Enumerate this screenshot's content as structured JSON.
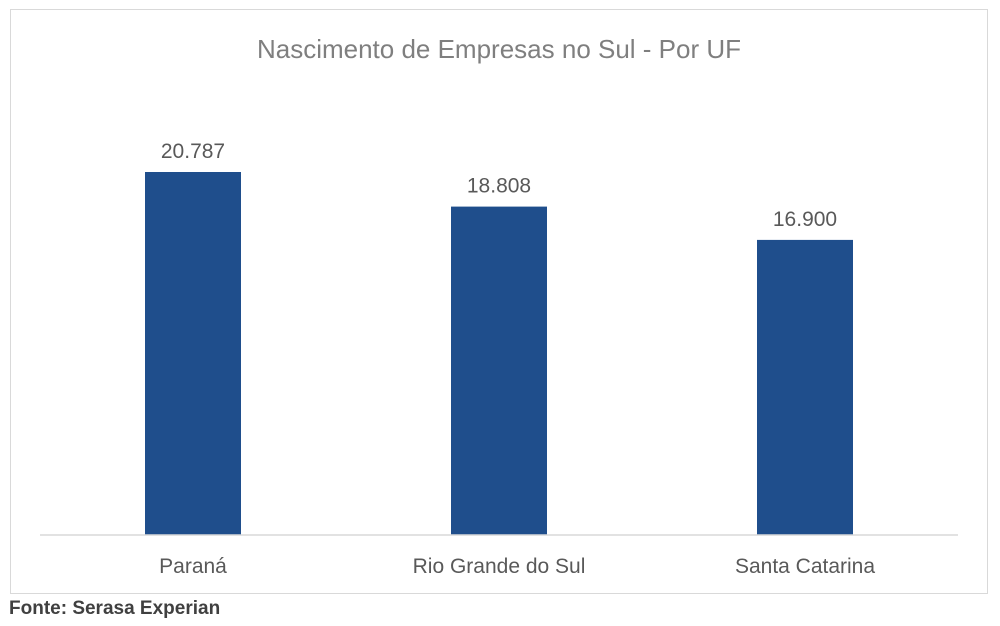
{
  "chart_data": {
    "type": "bar",
    "title": "Nascimento de Empresas no Sul - Por UF",
    "categories": [
      "Paraná",
      "Rio Grande do Sul",
      "Santa Catarina"
    ],
    "values": [
      20787,
      18808,
      16900
    ],
    "data_labels": [
      "20.787",
      "18.808",
      "16.900"
    ],
    "xlabel": "",
    "ylabel": "",
    "ylim": [
      0,
      20787
    ],
    "grid": false,
    "legend": "none",
    "bar_color": "#1f4e8c",
    "axis_color": "#d9d9d9"
  },
  "source": {
    "text": "Fonte: Serasa Experian"
  }
}
